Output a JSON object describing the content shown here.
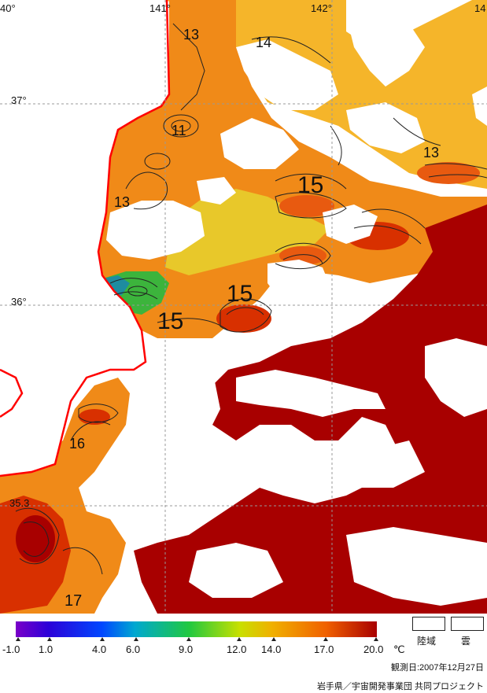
{
  "map": {
    "lon_labels": [
      "40°",
      "141°",
      "142°",
      "14"
    ],
    "lat_labels": [
      "37°",
      "36°",
      "35.3"
    ],
    "contour_labels": [
      "13",
      "14",
      "11",
      "13",
      "15",
      "13",
      "15",
      "15",
      "16",
      "17"
    ],
    "colors": {
      "deep_red": "#a80000",
      "red": "#d83000",
      "orange_red": "#e85a10",
      "orange": "#f08a18",
      "yellow_orange": "#f5b52a",
      "yellow": "#e8d02a",
      "green": "#3cb43c",
      "teal": "#1e8ca0",
      "coast": "#ff0000"
    }
  },
  "colorbar": {
    "ticks": [
      "-1.0",
      "1.0",
      "4.0",
      "6.0",
      "9.0",
      "12.0",
      "14.0",
      "17.0",
      "20.0"
    ],
    "unit": "℃",
    "min": -1.0,
    "max": 20.0
  },
  "legend": {
    "land_label": "陸域",
    "cloud_label": "雲"
  },
  "footer": {
    "observation_date": "観測日:2007年12月27日",
    "credit": "岩手県／宇宙開発事業団 共同プロジェクト"
  }
}
